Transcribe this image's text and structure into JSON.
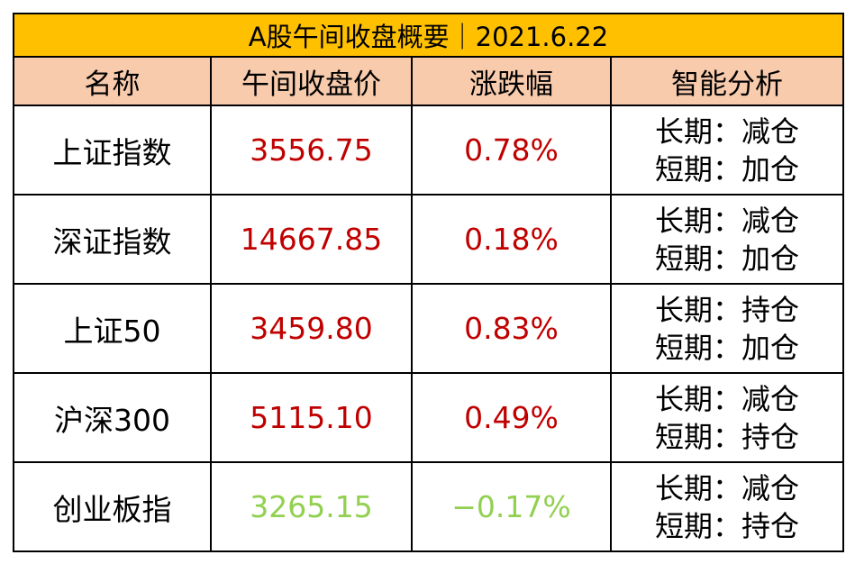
{
  "title": "A股午间收盘概要｜2021.6.22",
  "header": [
    "名称",
    "午间收盘价",
    "涨跌幅",
    "智能分析"
  ],
  "rows": [
    {
      "name": "上证指数",
      "price": "3556.75",
      "change": "0.78%",
      "color": "#c00000",
      "analysis": [
        "长期：减仓",
        "短期：加仓"
      ]
    },
    {
      "name": "深证指数",
      "price": "14667.85",
      "change": "0.18%",
      "color": "#c00000",
      "analysis": [
        "长期：减仓",
        "短期：加仓"
      ]
    },
    {
      "name": "上证50",
      "price": "3459.80",
      "change": "0.83%",
      "color": "#c00000",
      "analysis": [
        "长期：持仓",
        "短期：加仓"
      ]
    },
    {
      "name": "沪深300",
      "price": "5115.10",
      "change": "0.49%",
      "color": "#c00000",
      "analysis": [
        "长期：减仓",
        "短期：持仓"
      ]
    },
    {
      "name": "创业板指",
      "price": "3265.15",
      "change": "−0.17%",
      "color": "#92d050",
      "analysis": [
        "长期：减仓",
        "短期：持仓"
      ]
    }
  ]
}
